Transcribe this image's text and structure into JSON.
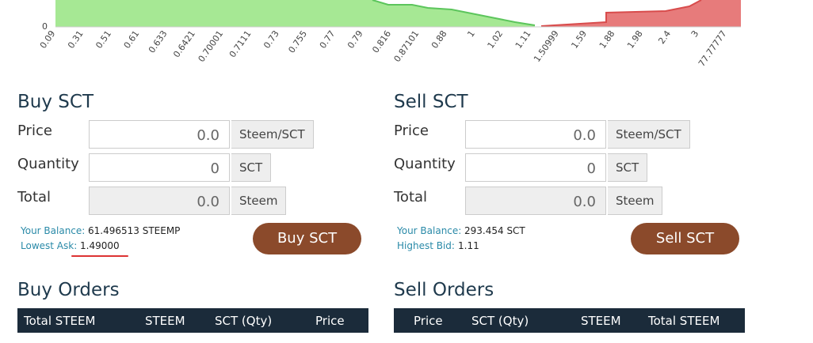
{
  "depth_chart": {
    "y_tick": "0",
    "x_labels": [
      "0.09",
      "0.31",
      "0.51",
      "0.61",
      "0.633",
      "0.6421",
      "0.70001",
      "0.7111",
      "0.73",
      "0.755",
      "0.77",
      "0.79",
      "0.816",
      "0.87101",
      "0.88",
      "1",
      "1.02",
      "1.11",
      "1.50999",
      "1.59",
      "1.88",
      "1.98",
      "2.4",
      "3",
      "77.77777"
    ]
  },
  "buy": {
    "title": "Buy SCT",
    "fields": [
      {
        "label": "Price",
        "value": "0.0",
        "unit": "Steem/SCT"
      },
      {
        "label": "Quantity",
        "value": "0",
        "unit": "SCT"
      },
      {
        "label": "Total",
        "value": "0.0",
        "unit": "Steem"
      }
    ],
    "balance_label": "Your Balance:",
    "balance": "61.496513 STEEMP",
    "quote_label": "Lowest Ask:",
    "quote": "1.49000",
    "button": "Buy SCT"
  },
  "sell": {
    "title": "Sell SCT",
    "fields": [
      {
        "label": "Price",
        "value": "0.0",
        "unit": "Steem/SCT"
      },
      {
        "label": "Quantity",
        "value": "0",
        "unit": "SCT"
      },
      {
        "label": "Total",
        "value": "0.0",
        "unit": "Steem"
      }
    ],
    "balance_label": "Your Balance:",
    "balance": "293.454 SCT",
    "quote_label": "Highest Bid:",
    "quote": "1.11",
    "button": "Sell SCT"
  },
  "buy_orders": {
    "title": "Buy Orders",
    "columns": [
      "Total STEEM",
      "STEEM",
      "SCT (Qty)",
      "Price"
    ]
  },
  "sell_orders": {
    "title": "Sell Orders",
    "columns": [
      "Price",
      "SCT (Qty)",
      "STEEM",
      "Total STEEM"
    ]
  }
}
